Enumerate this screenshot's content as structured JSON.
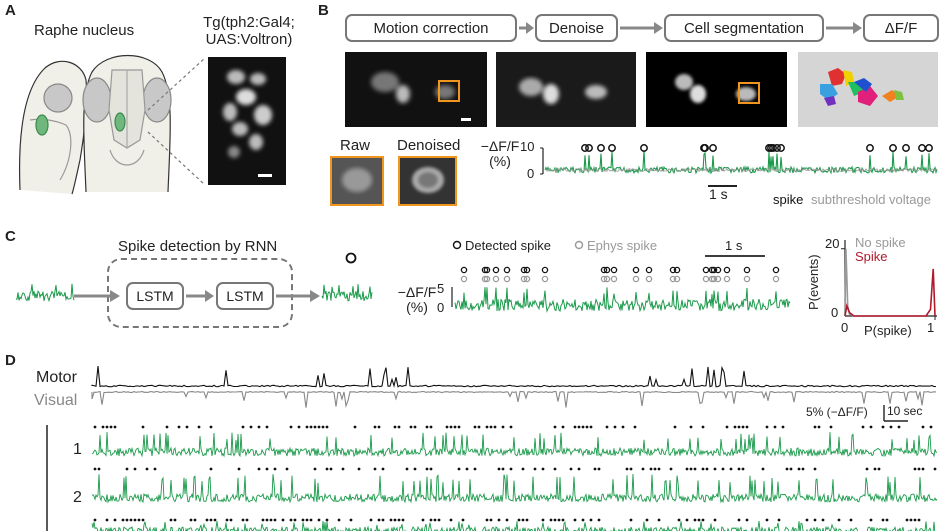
{
  "panel_letters": {
    "a": "A",
    "b": "B",
    "c": "C",
    "d": "D"
  },
  "panel_a": {
    "title": "Raphe nucleus",
    "line_name_1": "Tg(tph2:Gal4;",
    "line_name_2": "UAS:Voltron)"
  },
  "panel_b": {
    "steps": [
      "Motion correction",
      "Denoise",
      "Cell segmentation",
      "ΔF/F"
    ],
    "raw_label": "Raw",
    "denoised_label": "Denoised",
    "ylabel": "−ΔF/F (%)",
    "ylabel_line1": "−ΔF/F",
    "ylabel_line2": "(%)",
    "ytick_top": "10",
    "ytick_bottom": "0",
    "scalebar": "1 s",
    "legend_spike": "spike",
    "legend_sub": "subthreshold voltage",
    "colors": {
      "trace": "#1a9a4a",
      "subthreshold": "#999999",
      "box": "#f0951e"
    }
  },
  "panel_c": {
    "title": "Spike detection by RNN",
    "lstm": [
      "LSTM",
      "LSTM"
    ],
    "legend_detected": "Detected spike",
    "legend_ephys": "Ephys spike",
    "scalebar": "1 s",
    "ylabel_line1": "−ΔF/F",
    "ylabel_line2": "(%)",
    "ytick_top": "5",
    "ytick_bottom": "0"
  },
  "chart_data": {
    "type": "line",
    "title": "",
    "xlabel": "P(spike)",
    "ylabel": "P(events)",
    "xticks": [
      "0",
      "1"
    ],
    "yticks": [
      "0",
      "20"
    ],
    "xlim": [
      0,
      1
    ],
    "ylim": [
      0,
      22
    ],
    "series": [
      {
        "name": "No spike",
        "color": "#999999",
        "x": [
          0,
          0.01,
          0.02,
          0.03,
          0.05,
          0.1
        ],
        "values": [
          0,
          20,
          12,
          3,
          0.5,
          0
        ]
      },
      {
        "name": "Spike",
        "color": "#b0182c",
        "x": [
          0,
          0.02,
          0.05,
          0.1,
          0.9,
          0.95,
          0.98,
          1.0
        ],
        "values": [
          0,
          3,
          1,
          0,
          0,
          2,
          14,
          0
        ]
      }
    ]
  },
  "panel_d": {
    "motor_label": "Motor",
    "visual_label": "Visual",
    "scale_text": "5% (−ΔF/F)",
    "time_scale": "10 sec",
    "row_labels": [
      "1",
      "2"
    ]
  }
}
